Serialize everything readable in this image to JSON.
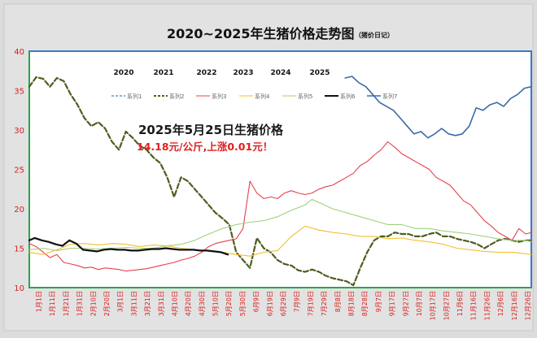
{
  "chart_data": {
    "type": "line",
    "title": "2020~2025年生猪价格走势图",
    "title_note": "（猪价日记）",
    "ylim": [
      10,
      40
    ],
    "y_ticks": [
      10,
      15,
      20,
      25,
      30,
      35,
      40
    ],
    "x_ticks": [
      "1月1日",
      "1月11日",
      "1月21日",
      "1月31日",
      "2月10日",
      "2月20日",
      "3月1日",
      "3月11日",
      "3月21日",
      "3月31日",
      "4月10日",
      "4月20日",
      "4月30日",
      "5月10日",
      "5月20日",
      "5月30日",
      "6月9日",
      "6月19日",
      "6月29日",
      "7月9日",
      "7月19日",
      "7月29日",
      "8月8日",
      "8月18日",
      "8月28日",
      "9月7日",
      "9月17日",
      "9月27日",
      "10月7日",
      "10月17日",
      "10月27日",
      "11月6日",
      "11月16日",
      "11月26日",
      "12月6日",
      "12月16日",
      "12月26日"
    ],
    "year_labels": [
      "2020",
      "2021",
      "2022",
      "2023",
      "2024",
      "2025"
    ],
    "annotation": {
      "headline": "2025年5月25日生猪价格",
      "detail": "14.18元/公斤,上涨0.01元！"
    },
    "grid": false,
    "legend_position": "top-right",
    "series": [
      {
        "name": "系列1",
        "color": "#4f7fbf",
        "dash": "4,2",
        "width": 1.2,
        "x": [],
        "y": []
      },
      {
        "name": "系列2",
        "color": "#4e5e1e",
        "dash": "6,3",
        "width": 2.2,
        "x": [
          1,
          6,
          11,
          16,
          21,
          26,
          31,
          36,
          41,
          46,
          51,
          56,
          61,
          66,
          71,
          76,
          81,
          86,
          91,
          96,
          101,
          106,
          111,
          116,
          121,
          126,
          131,
          136,
          141,
          146,
          151,
          156,
          161,
          166,
          171,
          176,
          181,
          186,
          191,
          196,
          201,
          206,
          211,
          216,
          221,
          226,
          231,
          236,
          241,
          246,
          251,
          256,
          261,
          266,
          271,
          276,
          281,
          286,
          291,
          296,
          301,
          306,
          311,
          316,
          321,
          326,
          331,
          336,
          341,
          346,
          351,
          356,
          361,
          365
        ],
        "y": [
          35.5,
          36.7,
          36.5,
          35.5,
          36.6,
          36.2,
          34.5,
          33.2,
          31.5,
          30.5,
          31.0,
          30.2,
          28.5,
          27.5,
          29.8,
          29.0,
          28.0,
          27.5,
          26.5,
          25.8,
          24.0,
          21.5,
          24.0,
          23.5,
          22.5,
          21.5,
          20.5,
          19.5,
          18.8,
          18.0,
          14.5,
          13.5,
          12.5,
          16.3,
          15.0,
          14.5,
          13.5,
          13.0,
          12.8,
          12.2,
          12.0,
          12.3,
          12.0,
          11.5,
          11.2,
          11.0,
          10.8,
          10.3,
          12.5,
          14.5,
          16.0,
          16.5,
          16.5,
          17.0,
          16.8,
          16.8,
          16.5,
          16.5,
          16.8,
          17.0,
          16.5,
          16.5,
          16.2,
          16.0,
          15.8,
          15.5,
          15.0,
          15.5,
          16.0,
          16.2,
          16.0,
          15.8,
          16.0,
          16.0
        ]
      },
      {
        "name": "系列3",
        "color": "#e5414a",
        "dash": "",
        "width": 1.1,
        "x": [
          1,
          6,
          11,
          16,
          21,
          26,
          31,
          36,
          41,
          46,
          51,
          56,
          61,
          66,
          71,
          76,
          81,
          86,
          91,
          96,
          101,
          106,
          111,
          116,
          121,
          126,
          131,
          136,
          141,
          146,
          151,
          156,
          161,
          166,
          171,
          176,
          181,
          186,
          191,
          196,
          201,
          206,
          211,
          216,
          221,
          226,
          231,
          236,
          241,
          246,
          251,
          256,
          261,
          266,
          271,
          276,
          281,
          286,
          291,
          296,
          301,
          306,
          311,
          316,
          321,
          326,
          331,
          336,
          341,
          346,
          351,
          356,
          361,
          365
        ],
        "y": [
          15.6,
          15.2,
          14.5,
          13.8,
          14.2,
          13.2,
          13.0,
          12.8,
          12.5,
          12.6,
          12.3,
          12.5,
          12.4,
          12.3,
          12.1,
          12.2,
          12.3,
          12.4,
          12.6,
          12.8,
          13.0,
          13.2,
          13.5,
          13.7,
          14.0,
          14.5,
          15.2,
          15.6,
          15.8,
          16.0,
          16.2,
          17.5,
          23.5,
          22.0,
          21.3,
          21.5,
          21.3,
          22.0,
          22.3,
          22.0,
          21.8,
          22.0,
          22.5,
          22.8,
          23.0,
          23.5,
          24.0,
          24.5,
          25.5,
          26.0,
          26.8,
          27.5,
          28.5,
          27.8,
          27.0,
          26.5,
          26.0,
          25.5,
          25.0,
          24.0,
          23.5,
          23.0,
          22.0,
          21.0,
          20.5,
          19.5,
          18.5,
          17.8,
          17.0,
          16.5,
          16.0,
          17.5,
          16.8,
          17.0
        ]
      },
      {
        "name": "系列4",
        "color": "#f2bf2f",
        "dash": "",
        "width": 1.1,
        "x": [
          1,
          11,
          21,
          31,
          41,
          51,
          61,
          71,
          81,
          91,
          101,
          111,
          121,
          131,
          141,
          151,
          161,
          171,
          181,
          191,
          201,
          211,
          221,
          231,
          241,
          251,
          261,
          271,
          281,
          291,
          301,
          311,
          321,
          331,
          341,
          351,
          361,
          365
        ],
        "y": [
          14.5,
          14.2,
          14.8,
          15.5,
          15.6,
          15.4,
          15.6,
          15.5,
          15.2,
          15.4,
          15.3,
          15.0,
          14.8,
          14.6,
          14.5,
          14.2,
          14.0,
          14.5,
          14.7,
          16.5,
          17.8,
          17.3,
          17.0,
          16.8,
          16.5,
          16.5,
          16.2,
          16.3,
          16.0,
          15.8,
          15.5,
          15.0,
          14.8,
          14.6,
          14.5,
          14.5,
          14.3,
          14.2
        ]
      },
      {
        "name": "系列5",
        "color": "#9fd17a",
        "dash": "",
        "width": 1.1,
        "x": [
          1,
          11,
          21,
          31,
          41,
          51,
          61,
          71,
          81,
          91,
          101,
          111,
          121,
          131,
          141,
          151,
          161,
          171,
          181,
          191,
          201,
          206,
          211,
          221,
          231,
          241,
          251,
          261,
          271,
          281,
          291,
          301,
          311,
          321,
          331,
          341,
          351,
          361,
          365
        ],
        "y": [
          14.8,
          15.0,
          14.7,
          15.0,
          15.0,
          14.9,
          15.0,
          15.1,
          15.0,
          15.0,
          15.3,
          15.5,
          16.0,
          16.8,
          17.5,
          18.0,
          18.3,
          18.5,
          19.0,
          19.8,
          20.5,
          21.2,
          20.8,
          20.0,
          19.5,
          19.0,
          18.5,
          18.0,
          18.0,
          17.5,
          17.5,
          17.2,
          17.0,
          16.8,
          16.5,
          16.2,
          16.0,
          16.0,
          15.8
        ]
      },
      {
        "name": "系列6",
        "color": "#111111",
        "dash": "",
        "width": 2.2,
        "x": [
          1,
          5,
          10,
          15,
          20,
          25,
          30,
          35,
          40,
          45,
          50,
          55,
          60,
          65,
          70,
          75,
          80,
          85,
          90,
          95,
          100,
          105,
          110,
          115,
          120,
          125,
          130,
          135,
          140,
          145
        ],
        "y": [
          16.0,
          16.3,
          16.0,
          15.8,
          15.5,
          15.3,
          16.0,
          15.6,
          14.8,
          14.7,
          14.6,
          14.8,
          14.9,
          14.8,
          14.8,
          14.7,
          14.7,
          14.8,
          14.9,
          14.9,
          15.0,
          14.9,
          14.8,
          14.8,
          14.8,
          14.7,
          14.7,
          14.6,
          14.5,
          14.2
        ]
      },
      {
        "name": "系列7",
        "color": "#3d6aa8",
        "dash": "",
        "width": 1.6,
        "x": [
          230,
          235,
          240,
          245,
          250,
          255,
          260,
          265,
          270,
          275,
          280,
          285,
          290,
          295,
          300,
          305,
          310,
          315,
          320,
          325,
          330,
          335,
          340,
          345,
          350,
          355,
          360,
          365
        ],
        "y": [
          36.6,
          36.8,
          36.0,
          35.5,
          34.5,
          33.5,
          33.0,
          32.5,
          31.5,
          30.5,
          29.5,
          29.8,
          29.0,
          29.5,
          30.2,
          29.5,
          29.3,
          29.5,
          30.5,
          32.8,
          32.5,
          33.2,
          33.5,
          33.0,
          34.0,
          34.5,
          35.3,
          35.5
        ]
      }
    ]
  }
}
